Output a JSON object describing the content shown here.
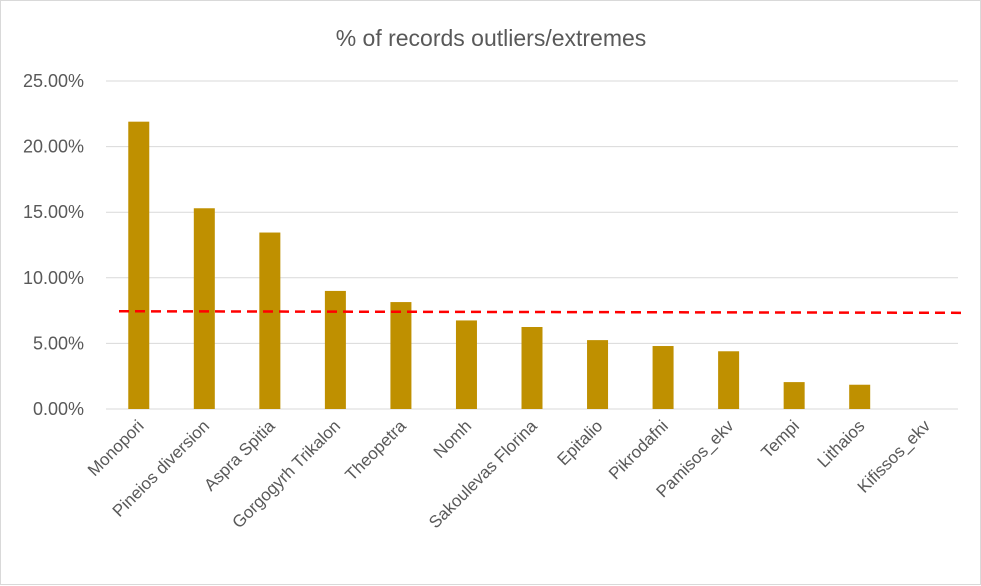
{
  "chart_data": {
    "type": "bar",
    "title": "% of records outliers/extremes",
    "categories": [
      "Monopori",
      "Pineios diversion",
      "Aspra Spitia",
      "Gorgogyrh Trikalon",
      "Theopetra",
      "Nomh",
      "Sakoulevas Florina",
      "Epitalio",
      "Pikrodafni",
      "Pamisos_ekv",
      "Tempi",
      "Lithaios",
      "Kifissos_ekv"
    ],
    "values": [
      21.9,
      15.3,
      13.45,
      9.0,
      8.15,
      6.75,
      6.25,
      5.25,
      4.8,
      4.4,
      2.05,
      1.85,
      0.0
    ],
    "y_ticks": [
      "0.00%",
      "5.00%",
      "10.00%",
      "15.00%",
      "20.00%",
      "25.00%"
    ],
    "ylim": [
      0,
      25
    ],
    "reference_line": {
      "value": 7.45,
      "style": "dashed",
      "color": "#ff0000"
    },
    "bar_color": "#bf9000",
    "grid": true,
    "legend": "none"
  }
}
